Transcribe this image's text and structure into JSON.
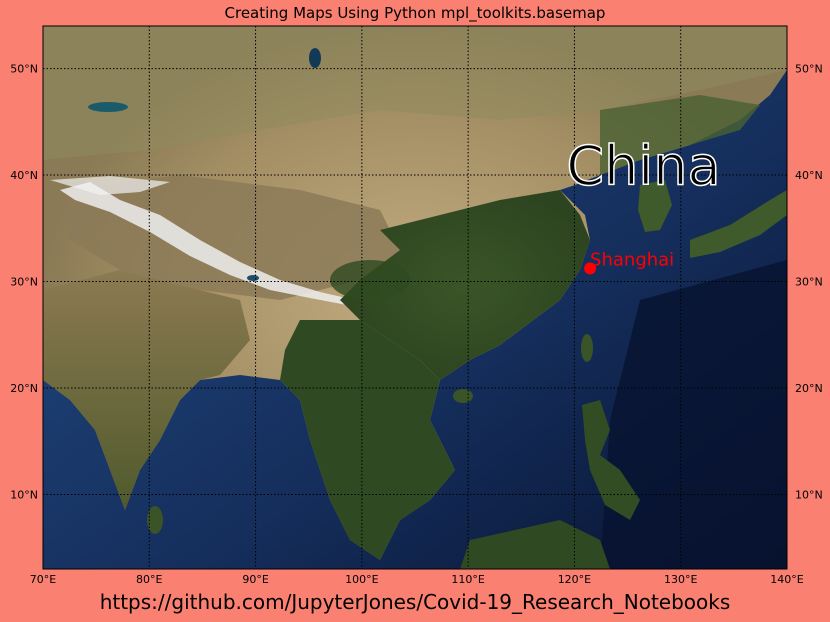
{
  "title": "Creating Maps Using Python mpl_toolkits.basemap",
  "footer": "https://github.com/JupyterJones/Covid-19_Research_Notebooks",
  "colors": {
    "figure_background": "#fa8072",
    "land_desert": "#b9a47a",
    "land_green": "#3f5a2b",
    "ocean_shallow": "#2f5f9a",
    "ocean_deep": "#0b1a3a",
    "snow": "#f3f3f3",
    "grid": "#000000",
    "marker": "#ff0000",
    "label_china": "#000000",
    "label_shanghai": "#ff0000"
  },
  "map": {
    "lon_range": [
      70,
      140
    ],
    "lat_range": [
      3,
      54
    ],
    "meridians": [
      70,
      80,
      90,
      100,
      110,
      120,
      130,
      140
    ],
    "meridian_labels": [
      "70°E",
      "80°E",
      "90°E",
      "100°E",
      "110°E",
      "120°E",
      "130°E",
      "140°E"
    ],
    "parallels": [
      10,
      20,
      30,
      40,
      50
    ],
    "parallel_labels": [
      "10°N",
      "20°N",
      "30°N",
      "40°N",
      "50°N"
    ]
  },
  "annotations": {
    "country_label": "China",
    "country_lon": 126.5,
    "country_lat": 41,
    "city": {
      "name": "Shanghai",
      "lon": 121.47,
      "lat": 31.23
    }
  }
}
